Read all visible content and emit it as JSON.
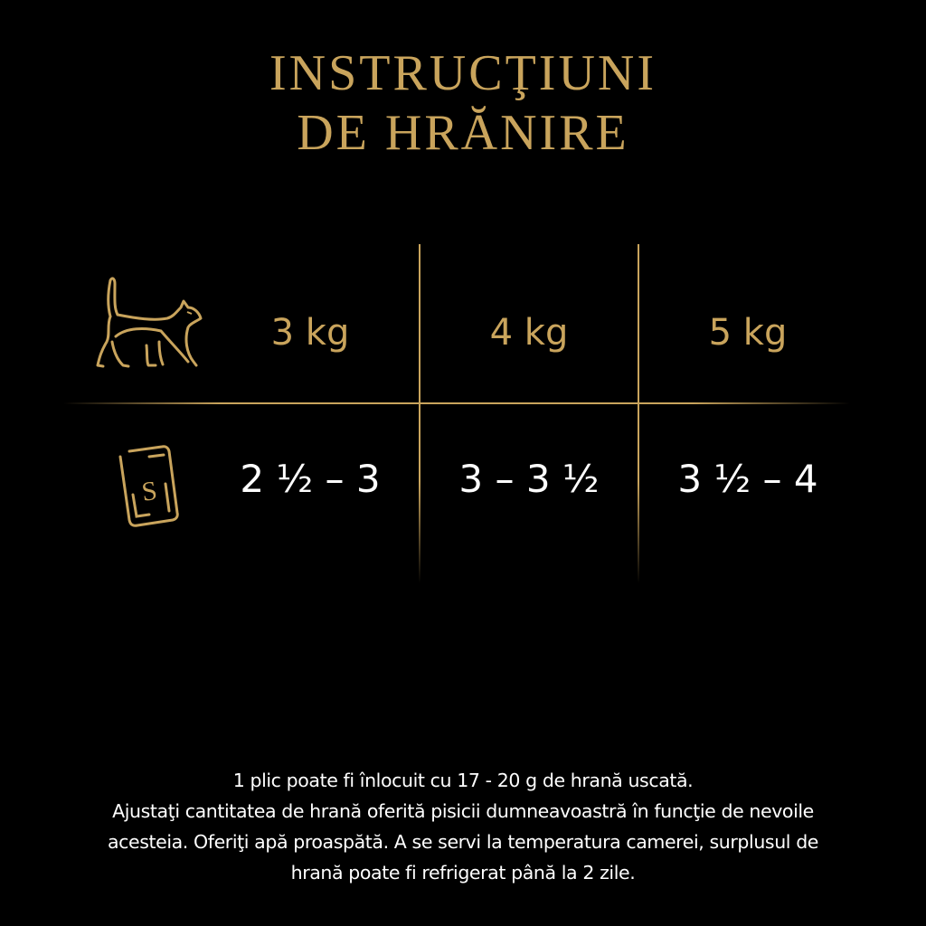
{
  "title": {
    "line1": "INSTRUCŢIUNI",
    "line2": "DE HRĂNIRE"
  },
  "colors": {
    "gold": "#c9a45c",
    "background": "#000000",
    "text": "#ffffff"
  },
  "table": {
    "row_icons": [
      "cat-icon",
      "pouch-icon"
    ],
    "pouch_icon_letter": "S",
    "headers": [
      "3 kg",
      "4 kg",
      "5 kg"
    ],
    "values": [
      "2 ½ – 3",
      "3 – 3 ½",
      "3 ½ – 4"
    ]
  },
  "footer": {
    "lines": [
      "1 plic poate fi înlocuit cu 17 - 20 g de hrană uscată.",
      "Ajustaţi cantitatea de hrană oferită pisicii dumneavoastră în funcţie de nevoile",
      "acesteia. Oferiţi apă proaspătă. A se servi la temperatura camerei, surplusul de",
      "hrană poate fi refrigerat până la 2 zile."
    ]
  }
}
